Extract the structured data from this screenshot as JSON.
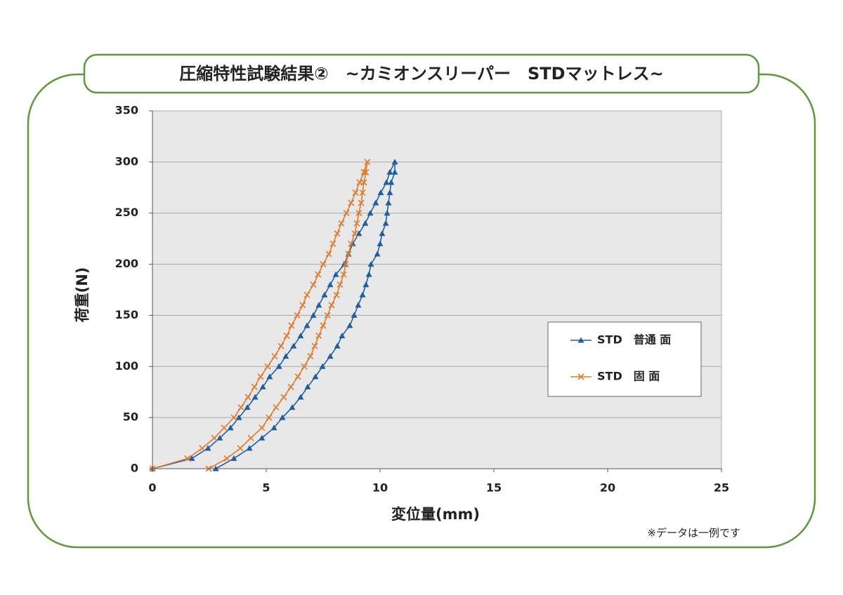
{
  "chart_data": {
    "type": "line",
    "title": "圧縮特性試験結果②　~カミオンスリーパー　STDマットレス~",
    "x_label": "変位量(mm)",
    "y_label": "荷重(N)",
    "note": "※データは一例です",
    "xlim": [
      0,
      25
    ],
    "xticks": [
      0,
      5,
      10,
      15,
      20,
      25
    ],
    "ylim": [
      0,
      350
    ],
    "yticks": [
      0,
      50,
      100,
      150,
      200,
      250,
      300,
      350
    ],
    "grid": true,
    "legend": "right",
    "series": [
      {
        "name": "STD　普通 面",
        "color": "#1f5fa0",
        "marker": "triangle",
        "x": [
          0,
          1.73,
          2.44,
          2.96,
          3.43,
          3.8,
          4.17,
          4.51,
          4.85,
          5.15,
          5.56,
          5.86,
          6.2,
          6.51,
          6.79,
          7.07,
          7.31,
          7.56,
          7.81,
          8.06,
          8.43,
          8.61,
          8.8,
          9.07,
          9.35,
          9.57,
          9.81,
          10.03,
          10.28,
          10.43,
          10.65,
          10.65,
          10.49,
          10.43,
          10.37,
          10.31,
          10.25,
          10.09,
          10.0,
          9.88,
          9.6,
          9.51,
          9.38,
          9.23,
          9.04,
          8.86,
          8.67,
          8.33,
          8.12,
          7.81,
          7.47,
          7.16,
          6.82,
          6.51,
          6.14,
          5.71,
          5.34,
          4.81,
          4.26,
          3.58,
          2.78
        ],
        "values": [
          0,
          10,
          20,
          30,
          40,
          50,
          60,
          70,
          80,
          90,
          100,
          110,
          120,
          130,
          140,
          150,
          160,
          170,
          180,
          190,
          200,
          210,
          220,
          230,
          240,
          250,
          260,
          270,
          280,
          290,
          300,
          290,
          280,
          270,
          260,
          250,
          240,
          230,
          220,
          210,
          200,
          190,
          180,
          170,
          160,
          150,
          140,
          130,
          120,
          110,
          100,
          90,
          80,
          70,
          60,
          50,
          40,
          30,
          20,
          10,
          0
        ]
      },
      {
        "name": "STD　固 面",
        "color": "#e07b2e",
        "marker": "x",
        "x": [
          0,
          1.54,
          2.19,
          2.72,
          3.15,
          3.58,
          3.89,
          4.2,
          4.48,
          4.75,
          5.06,
          5.37,
          5.65,
          5.9,
          6.11,
          6.36,
          6.6,
          6.79,
          7.07,
          7.28,
          7.5,
          7.75,
          7.93,
          8.12,
          8.3,
          8.52,
          8.73,
          8.92,
          9.1,
          9.29,
          9.44,
          9.38,
          9.29,
          9.23,
          9.17,
          9.07,
          8.98,
          8.89,
          8.73,
          8.61,
          8.49,
          8.4,
          8.24,
          8.09,
          7.87,
          7.69,
          7.5,
          7.31,
          7.13,
          6.94,
          6.67,
          6.39,
          6.08,
          5.77,
          5.43,
          5.12,
          4.81,
          4.32,
          3.86,
          3.27,
          2.47
        ],
        "values": [
          0,
          10,
          20,
          30,
          40,
          50,
          60,
          70,
          80,
          90,
          100,
          110,
          120,
          130,
          140,
          150,
          160,
          170,
          180,
          190,
          200,
          210,
          220,
          230,
          240,
          250,
          260,
          270,
          280,
          290,
          300,
          290,
          280,
          270,
          260,
          250,
          240,
          230,
          220,
          210,
          200,
          190,
          180,
          170,
          160,
          150,
          140,
          130,
          120,
          110,
          100,
          90,
          80,
          70,
          60,
          50,
          40,
          30,
          20,
          10,
          0
        ]
      }
    ]
  }
}
